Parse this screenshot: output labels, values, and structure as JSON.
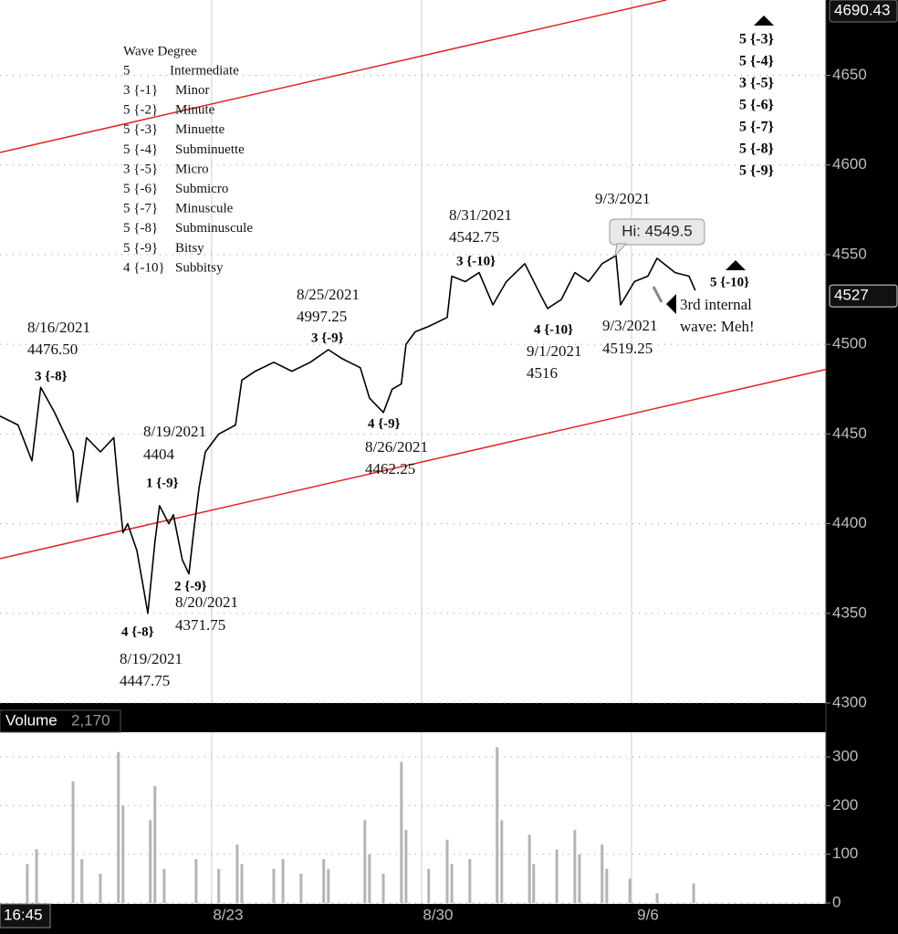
{
  "chart_data": [
    {
      "type": "line",
      "x": [
        -0.04,
        0.39,
        0.72,
        0.93,
        1.26,
        1.7,
        1.8,
        2.02,
        2.35,
        2.67,
        2.78,
        2.89,
        3.0,
        3.22,
        3.37,
        3.48,
        3.65,
        3.76,
        3.98,
        4.09,
        4.3,
        4.46,
        4.57,
        4.7,
        4.85,
        5.17,
        5.57,
        5.72,
        6.04,
        6.48,
        6.91,
        7.35,
        7.78,
        8.11,
        8.54,
        8.76,
        9.09,
        9.3,
        9.52,
        9.63,
        9.85,
        10.17,
        10.61,
        10.72,
        11.04,
        11.37,
        11.7,
        12.02,
        12.46,
        12.78,
        13.0,
        13.33,
        13.65,
        13.98,
        14.3,
        14.63,
        14.74,
        15.07,
        15.39,
        15.61,
        16.04,
        16.37,
        16.52
      ],
      "values": [
        4460,
        4455,
        4435,
        4476,
        4462,
        4440,
        4412,
        4448,
        4440,
        4448,
        4420,
        4395,
        4400,
        4385,
        4365,
        4350,
        4390,
        4410,
        4400,
        4405,
        4380,
        4372,
        4395,
        4420,
        4440,
        4450,
        4455,
        4480,
        4485,
        4490,
        4485,
        4490,
        4497,
        4492,
        4487,
        4470,
        4462,
        4475,
        4478,
        4500,
        4507,
        4510,
        4515,
        4538,
        4535,
        4540,
        4522,
        4535,
        4545,
        4530,
        4520,
        4525,
        4540,
        4535,
        4545,
        4549.5,
        4522,
        4535,
        4538,
        4548,
        4540,
        4538,
        4530
      ],
      "color": "#000000",
      "xlim": [
        -0.04,
        19.63
      ],
      "ylim": [
        4300,
        4692
      ],
      "yticks": [
        4300,
        4350,
        4400,
        4450,
        4500,
        4550,
        4600,
        4650
      ],
      "xticks": [
        {
          "value": 5,
          "label": "8/23"
        },
        {
          "value": 10,
          "label": "8/30"
        },
        {
          "value": 15,
          "label": "9/6"
        }
      ],
      "grid": true,
      "high_marker": 4690.43,
      "last_price": 4527,
      "time_label": "16:45",
      "trendlines": [
        {
          "color": "#e02424",
          "x": [
            -0.04,
            15.83
          ],
          "values": [
            4607,
            4692
          ]
        },
        {
          "color": "#e02424",
          "x": [
            -0.04,
            19.63
          ],
          "values": [
            4380.5,
            4486
          ]
        }
      ]
    },
    {
      "type": "bar",
      "title": "Volume",
      "current": "2,170",
      "x": [
        0.61,
        0.83,
        1.7,
        1.91,
        2.35,
        2.78,
        2.89,
        3.54,
        3.65,
        3.87,
        4.63,
        5.17,
        5.61,
        5.72,
        6.48,
        6.7,
        7.13,
        7.67,
        7.78,
        8.65,
        8.76,
        9.09,
        9.52,
        9.63,
        10.17,
        10.61,
        10.72,
        11.15,
        11.8,
        11.91,
        12.57,
        12.67,
        13.22,
        13.65,
        13.76,
        14.3,
        14.41,
        14.96,
        15.61,
        16.48
      ],
      "values": [
        80,
        110,
        250,
        90,
        60,
        310,
        200,
        170,
        240,
        70,
        90,
        70,
        120,
        80,
        70,
        90,
        60,
        90,
        70,
        170,
        100,
        60,
        290,
        150,
        70,
        130,
        80,
        90,
        320,
        170,
        140,
        80,
        110,
        150,
        100,
        120,
        70,
        50,
        20,
        40
      ],
      "color": "#b4b4b4",
      "xlim": [
        -0.04,
        19.63
      ],
      "ylim": [
        0,
        350
      ],
      "yticks": [
        0,
        100,
        200,
        300
      ],
      "grid": true
    }
  ],
  "annotations": {
    "legend_title": "Wave Degree",
    "legend": [
      [
        "5",
        "Intermediate"
      ],
      [
        "3 {-1}",
        "Minor"
      ],
      [
        "5 {-2}",
        "Minute"
      ],
      [
        "5 {-3}",
        "Minuette"
      ],
      [
        "5 {-4}",
        "Subminuette"
      ],
      [
        "3 {-5}",
        "Micro"
      ],
      [
        "5 {-6}",
        "Submicro"
      ],
      [
        "5 {-7}",
        "Minuscule"
      ],
      [
        "5 {-8}",
        "Subminuscule"
      ],
      [
        "5 {-9}",
        "Bitsy"
      ],
      [
        "4 {-10}",
        "Subbitsy"
      ]
    ],
    "right_list": [
      "5 {-3}",
      "5 {-4}",
      "3 {-5}",
      "5 {-6}",
      "5 {-7}",
      "5 {-8}",
      "5 {-9}"
    ],
    "waves": [
      "3 {-8}",
      "1 {-9}",
      "2 {-9}",
      "4 {-8}",
      "3 {-9}",
      "4 {-9}",
      "3 {-10}",
      "4 {-10}",
      "5 {-10}"
    ],
    "notes": [
      "8/16/2021",
      "4476.50",
      "8/19/2021",
      "4404",
      "8/25/2021",
      "4997.25",
      "8/31/2021",
      "4542.75",
      "9/3/2021",
      "9/1/2021",
      "4516",
      "9/3/2021",
      "4519.25",
      "3rd internal",
      "wave: Meh!",
      "8/26/2021",
      "4462.25",
      "8/20/2021",
      "4371.75",
      "8/19/2021",
      "4447.75"
    ],
    "callout": "Hi: 4549.5"
  }
}
